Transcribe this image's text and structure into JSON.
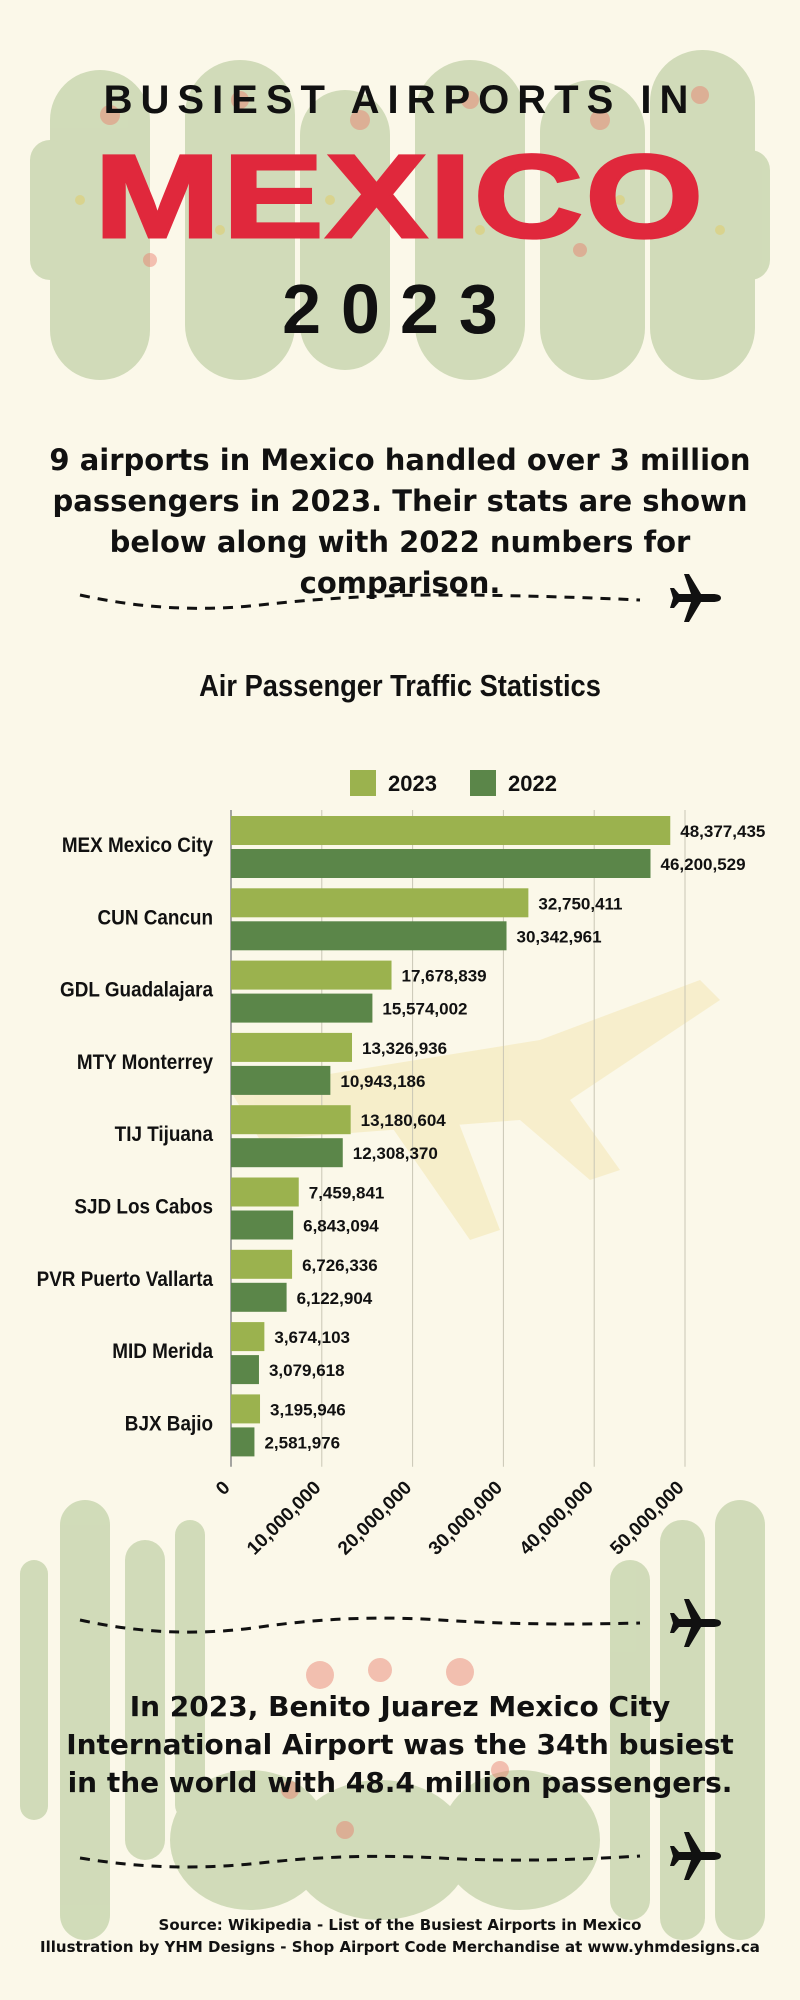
{
  "header": {
    "line1": "BUSIEST AIRPORTS IN",
    "line2": "MEXICO",
    "line3": "2023"
  },
  "intro": "9 airports in Mexico handled over 3 million passengers in 2023. Their stats are shown below along with 2022 numbers for comparison.",
  "chart_data": {
    "type": "bar",
    "orientation": "horizontal",
    "title": "Air Passenger Traffic Statistics",
    "categories": [
      "MEX Mexico City",
      "CUN Cancun",
      "GDL Guadalajara",
      "MTY Monterrey",
      "TIJ Tijuana",
      "SJD Los Cabos",
      "PVR Puerto Vallarta",
      "MID Merida",
      "BJX Bajio"
    ],
    "series": [
      {
        "name": "2023",
        "color": "#9bb24e",
        "values": [
          48377435,
          32750411,
          17678839,
          13326936,
          13180604,
          7459841,
          6726336,
          3674103,
          3195946
        ],
        "labels": [
          "48,377,435",
          "32,750,411",
          "17,678,839",
          "13,326,936",
          "13,180,604",
          "7,459,841",
          "6,726,336",
          "3,674,103",
          "3,195,946"
        ]
      },
      {
        "name": "2022",
        "color": "#5b8649",
        "values": [
          46200529,
          30342961,
          15574002,
          10943186,
          12308370,
          6843094,
          6122904,
          3079618,
          2581976
        ],
        "labels": [
          "46,200,529",
          "30,342,961",
          "15,574,002",
          "10,943,186",
          "12,308,370",
          "6,843,094",
          "6,122,904",
          "3,079,618",
          "2,581,976"
        ]
      }
    ],
    "xlim": [
      0,
      50000000
    ],
    "xticks": [
      0,
      10000000,
      20000000,
      30000000,
      40000000,
      50000000
    ],
    "xtick_labels": [
      "0",
      "10,000,000",
      "20,000,000",
      "30,000,000",
      "40,000,000",
      "50,000,000"
    ],
    "legend": "top",
    "grid": "vertical"
  },
  "closing": "In 2023, Benito Juarez Mexico City International Airport was the 34th busiest in the world with 48.4 million passengers.",
  "footer": {
    "source": "Source: Wikipedia - List of the Busiest Airports in Mexico",
    "credit": "Illustration by YHM Designs - Shop Airport Code Merchandise at www.yhmdesigns.ca"
  },
  "colors": {
    "background": "#fbf8e9",
    "accent_red": "#e0283c",
    "bar_2023": "#9bb24e",
    "bar_2022": "#5b8649"
  },
  "icons": [
    "airplane-icon",
    "cactus-illustration"
  ]
}
